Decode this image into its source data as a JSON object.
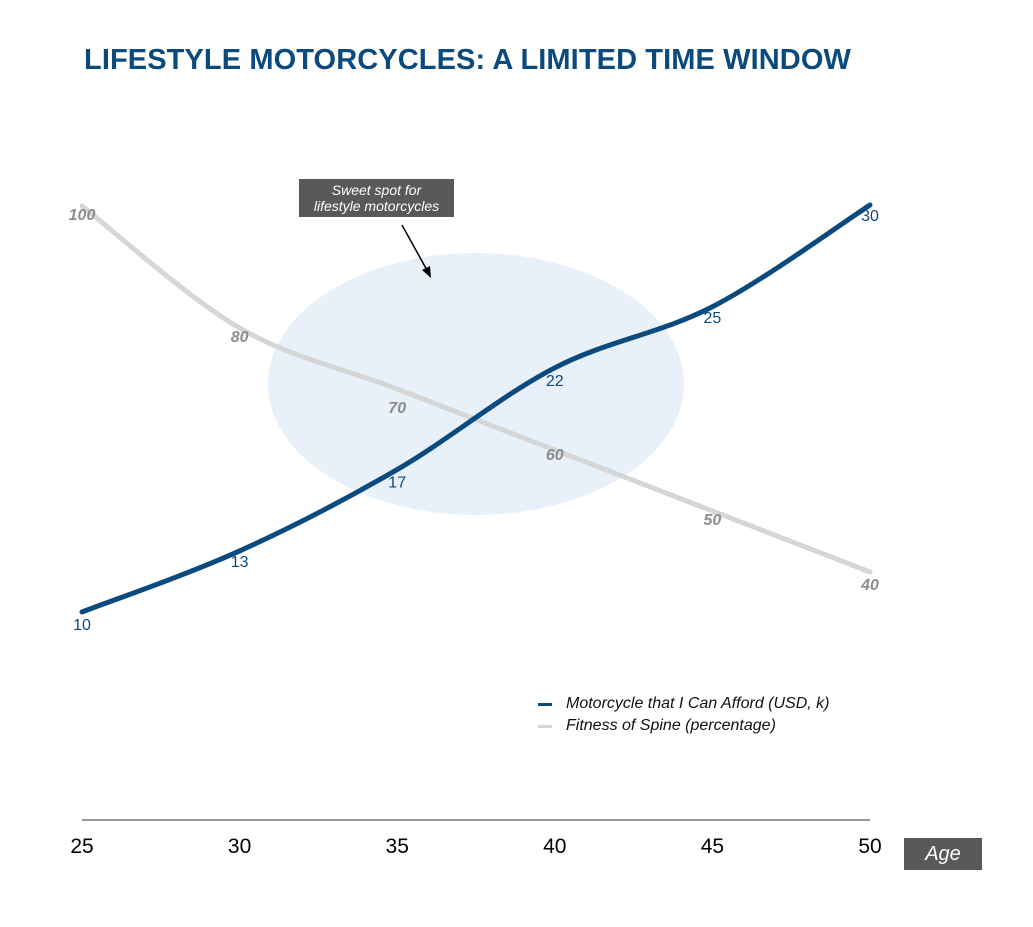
{
  "title": "LIFESTYLE MOTORCYCLES: A LIMITED TIME WINDOW",
  "annotation": {
    "line1": "Sweet spot for",
    "line2": "lifestyle motorcycles"
  },
  "x_axis_box_label": "Age",
  "legend": [
    {
      "label": "Motorcycle that I Can Afford (USD, k)",
      "color": "#0b4a7e"
    },
    {
      "label": "Fitness of Spine (percentage)",
      "color": "#d6d6d6"
    }
  ],
  "chart_data": {
    "type": "line",
    "title": "LIFESTYLE MOTORCYCLES: A LIMITED TIME WINDOW",
    "xlabel": "Age",
    "x": [
      25,
      30,
      35,
      40,
      45,
      50
    ],
    "series": [
      {
        "name": "Motorcycle that I Can Afford (USD, k)",
        "values": [
          10,
          13,
          17,
          22,
          25,
          30
        ],
        "color": "#0b4a7e",
        "labels": [
          "10",
          "13",
          "17",
          "22",
          "25",
          "30"
        ]
      },
      {
        "name": "Fitness of Spine (percentage)",
        "values": [
          100,
          80,
          70,
          60,
          50,
          40
        ],
        "color": "#d6d6d6",
        "labels": [
          "100",
          "80",
          "70",
          "60",
          "50",
          "40"
        ]
      }
    ],
    "grid": false,
    "legend_position": "bottom-right"
  },
  "highlight_color": "#e8f0f9"
}
